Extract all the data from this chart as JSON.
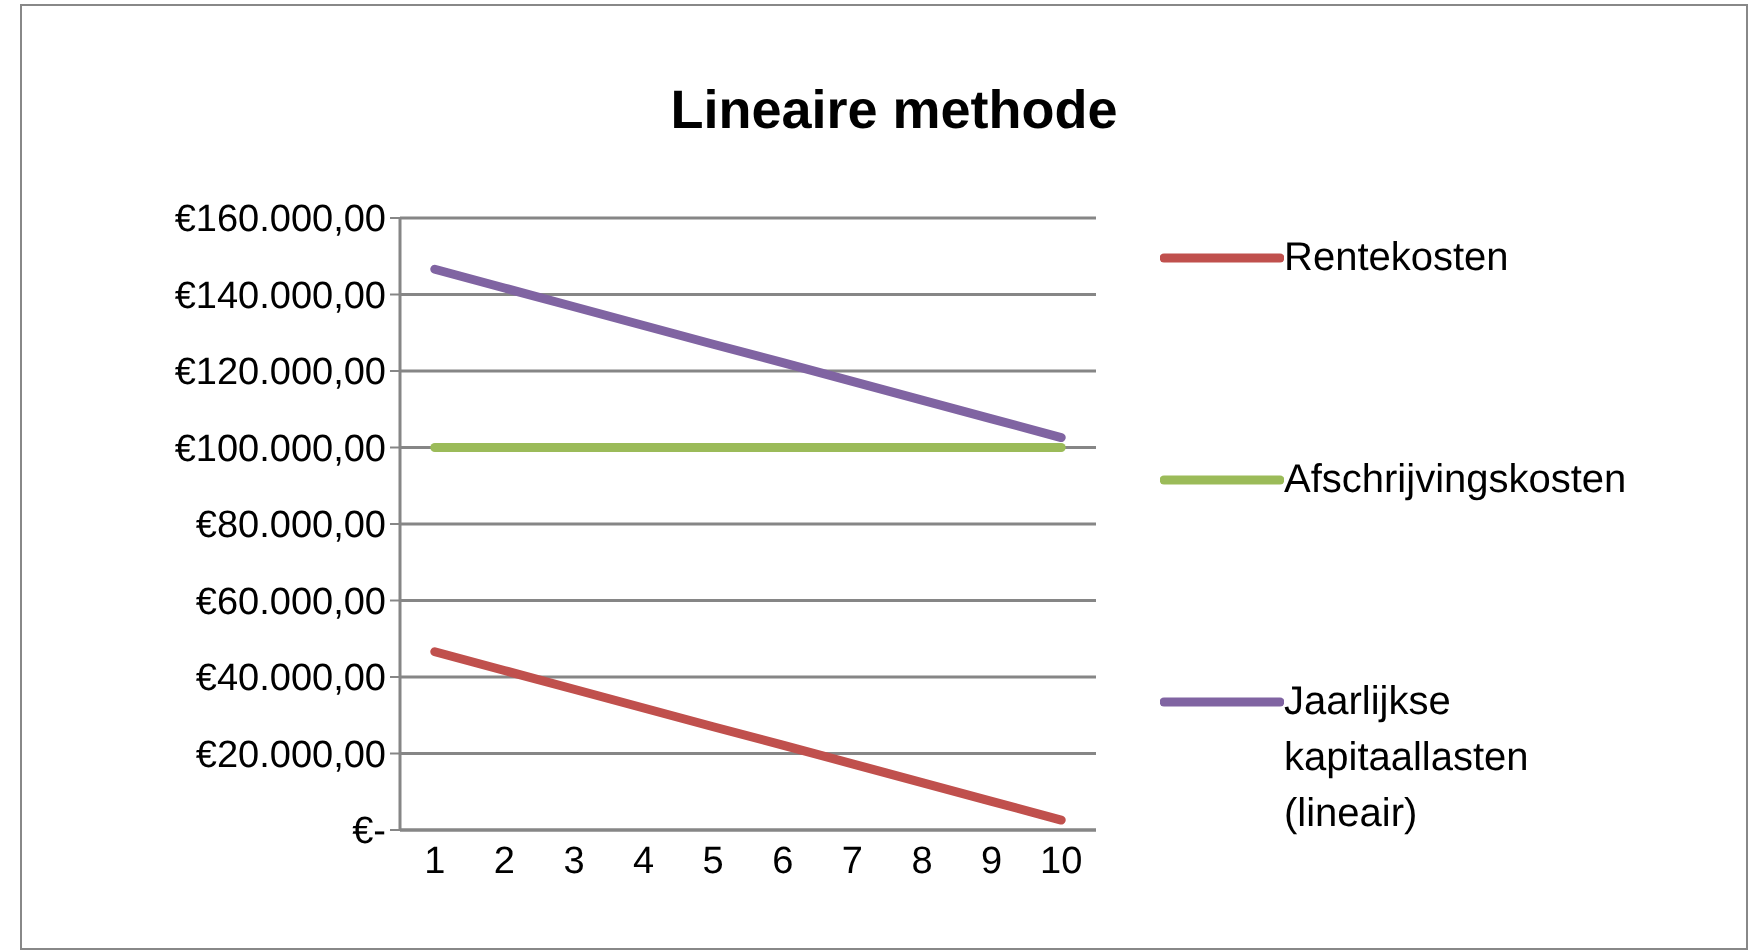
{
  "chart_data": {
    "type": "line",
    "title": "Lineaire methode",
    "x": [
      1,
      2,
      3,
      4,
      5,
      6,
      7,
      8,
      9,
      10
    ],
    "xlim": [
      0.5,
      10.5
    ],
    "xticks": [
      1,
      2,
      3,
      4,
      5,
      6,
      7,
      8,
      9,
      10
    ],
    "series": [
      {
        "name": "Rentekosten",
        "color": "#c0504d",
        "values": [
          46600,
          41700,
          36800,
          31900,
          27000,
          22200,
          17300,
          12400,
          7500,
          2600
        ]
      },
      {
        "name": "Afschrijvingskosten",
        "color": "#9bbb59",
        "values": [
          100000,
          100000,
          100000,
          100000,
          100000,
          100000,
          100000,
          100000,
          100000,
          100000
        ]
      },
      {
        "name": "Jaarlijkse kapitaallasten (lineair)",
        "color": "#8064a2",
        "values": [
          146600,
          141700,
          136800,
          131900,
          127000,
          122200,
          117300,
          112400,
          107500,
          102600
        ]
      }
    ],
    "ylim": [
      0,
      160000
    ],
    "yticks": [
      {
        "value": 0,
        "label": "€-"
      },
      {
        "value": 20000,
        "label": "€20.000,00"
      },
      {
        "value": 40000,
        "label": "€40.000,00"
      },
      {
        "value": 60000,
        "label": "€60.000,00"
      },
      {
        "value": 80000,
        "label": "€80.000,00"
      },
      {
        "value": 100000,
        "label": "€100.000,00"
      },
      {
        "value": 120000,
        "label": "€120.000,00"
      },
      {
        "value": 140000,
        "label": "€140.000,00"
      },
      {
        "value": 160000,
        "label": "€160.000,00"
      }
    ],
    "grid": "y",
    "legend": "right",
    "marker": "none",
    "line_style": "solid"
  }
}
